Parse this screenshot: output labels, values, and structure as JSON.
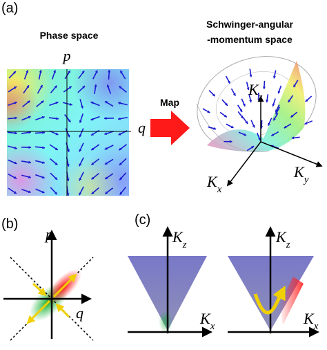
{
  "panel_a": {
    "label": "(a)",
    "phase_space": {
      "title": "Phase space",
      "p_axis": "p",
      "q_axis": "q"
    },
    "map_label": "Map",
    "schwinger": {
      "title_lines": [
        "Schwinger-angular",
        "-momentum space"
      ],
      "axes": {
        "kz": {
          "symbol": "K",
          "subscript": "z"
        },
        "kx": {
          "symbol": "K",
          "subscript": "x"
        },
        "ky": {
          "symbol": "K",
          "subscript": "y"
        }
      }
    }
  },
  "panel_b": {
    "label": "(b)",
    "p_axis": "p",
    "q_axis": "q"
  },
  "panel_c": {
    "label": "(c)",
    "left": {
      "kz": {
        "symbol": "K",
        "subscript": "z"
      },
      "kx": {
        "symbol": "K",
        "subscript": "x"
      }
    },
    "right": {
      "kz": {
        "symbol": "K",
        "subscript": "z"
      },
      "kx": {
        "symbol": "K",
        "subscript": "x"
      }
    }
  }
}
